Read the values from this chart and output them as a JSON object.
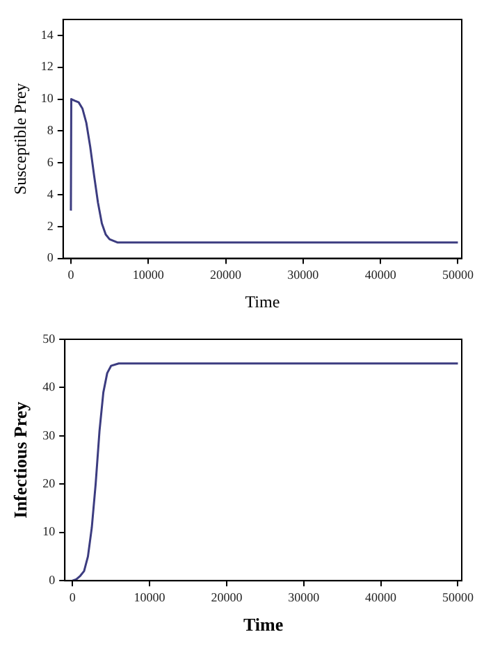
{
  "chart_data": [
    {
      "type": "line",
      "xlabel": "Time",
      "ylabel": "Susceptible Prey",
      "x": [
        0,
        50,
        500,
        1000,
        1500,
        2000,
        2500,
        3000,
        3500,
        4000,
        4500,
        5000,
        6000,
        50000
      ],
      "series": [
        {
          "color": "#3c3c80",
          "values": [
            3,
            10,
            9.9,
            9.8,
            9.4,
            8.5,
            7,
            5.2,
            3.5,
            2.2,
            1.5,
            1.2,
            1,
            1
          ]
        }
      ],
      "xlim": [
        -1000,
        50500
      ],
      "ylim": [
        0,
        15
      ],
      "xticks": [
        0,
        10000,
        20000,
        30000,
        40000,
        50000
      ],
      "yticks": [
        0,
        2,
        4,
        6,
        8,
        10,
        12,
        14
      ],
      "grid": false,
      "marker": "none"
    },
    {
      "type": "line",
      "xlabel": "Time",
      "ylabel": "Infectious Prey",
      "x": [
        0,
        500,
        1000,
        1500,
        2000,
        2500,
        3000,
        3500,
        4000,
        4500,
        5000,
        6000,
        50000
      ],
      "series": [
        {
          "color": "#3c3c80",
          "values": [
            0,
            0.3,
            1,
            2,
            5,
            11,
            20,
            31,
            39,
            43,
            44.5,
            45,
            45
          ]
        }
      ],
      "xlim": [
        -1000,
        50500
      ],
      "ylim": [
        0,
        50
      ],
      "xticks": [
        0,
        10000,
        20000,
        30000,
        40000,
        50000
      ],
      "yticks": [
        0,
        10,
        20,
        30,
        40,
        50
      ],
      "grid": false,
      "marker": "none"
    }
  ]
}
